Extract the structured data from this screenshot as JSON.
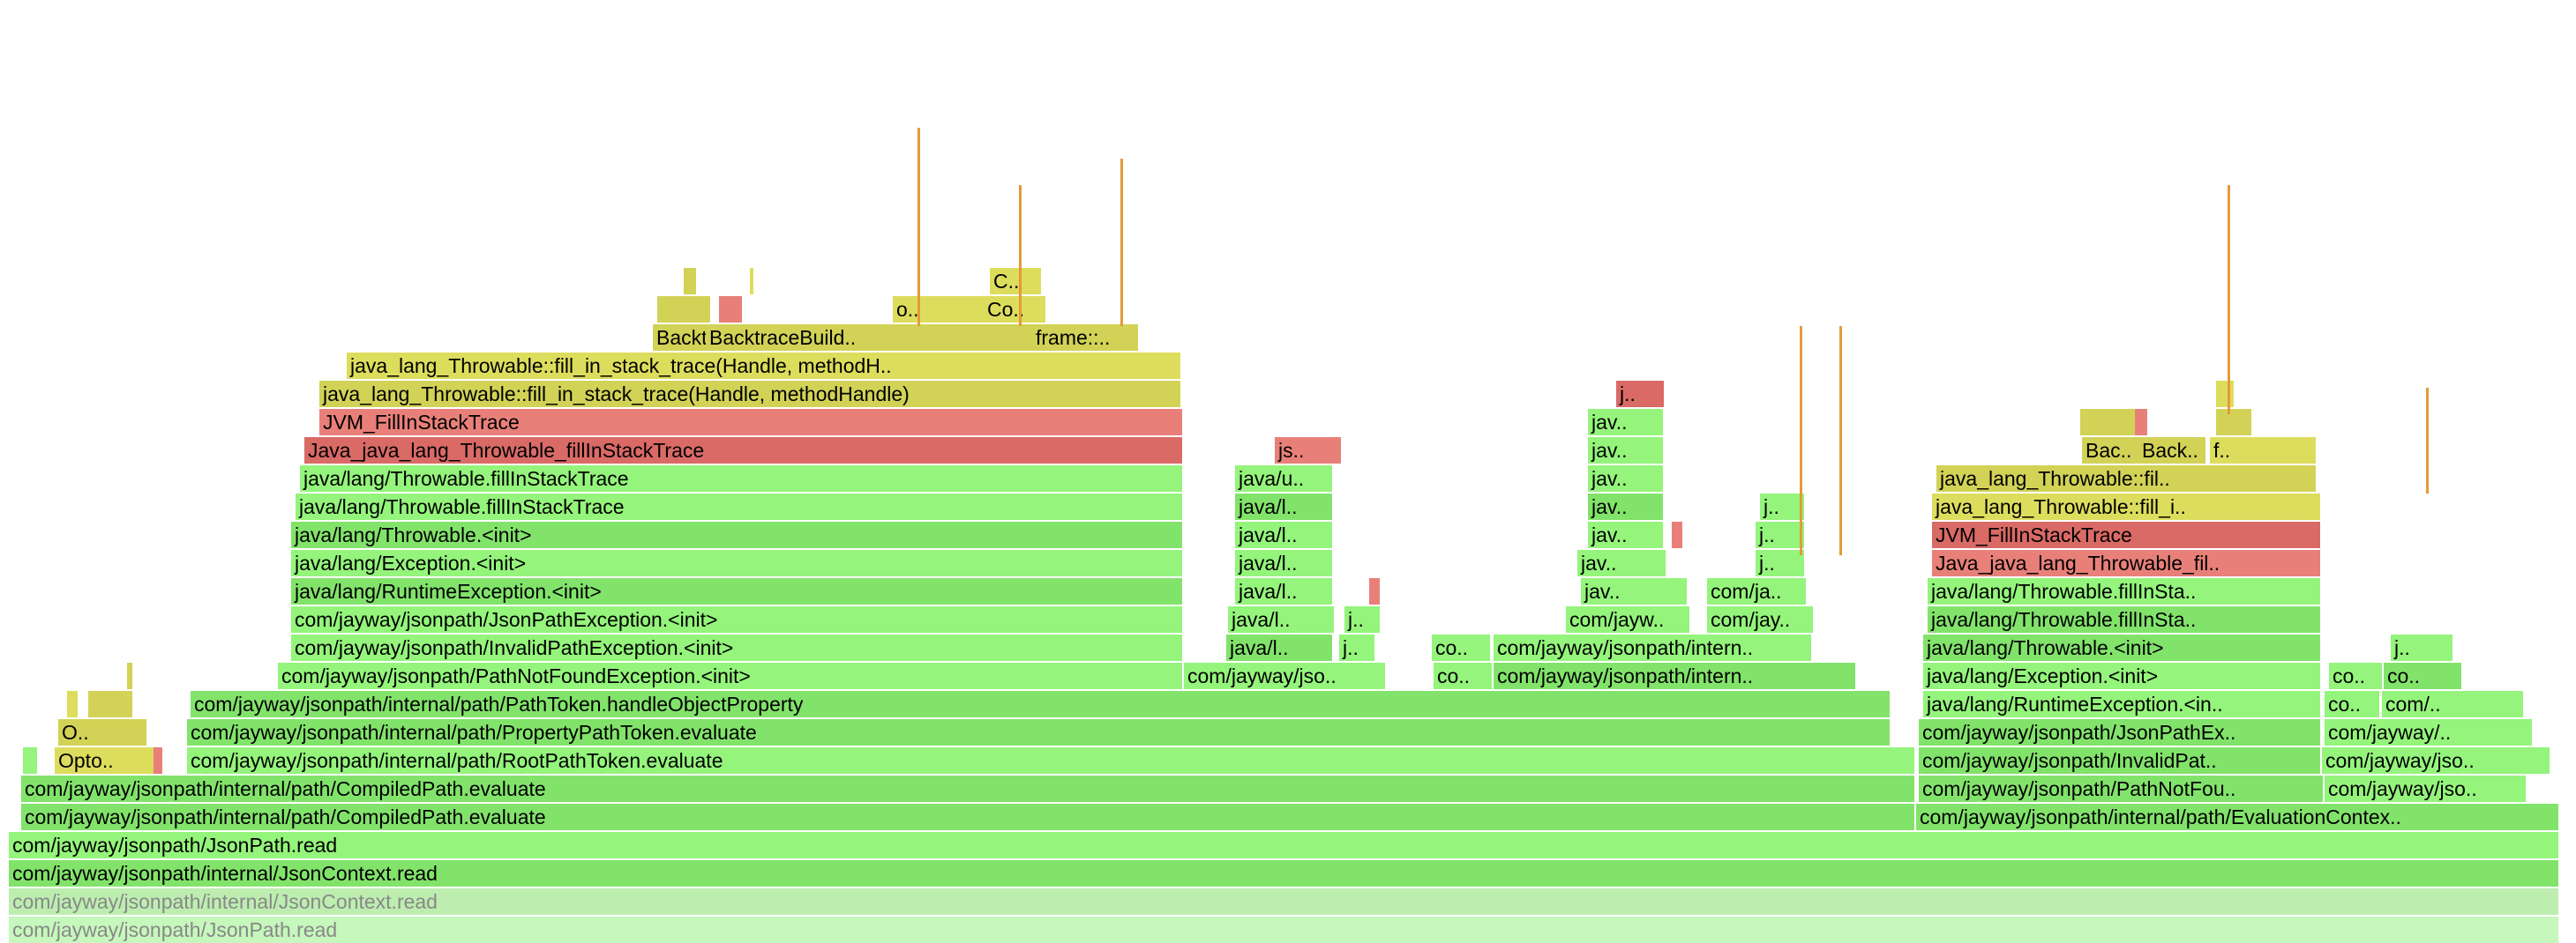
{
  "frames": {
    "l0_a": "com/jayway/jsonpath/JsonPath.read",
    "l1_a": "com/jayway/jsonpath/internal/JsonContext.read",
    "l2_a": "com/jayway/jsonpath/internal/JsonContext.read",
    "l3_a": "com/jayway/jsonpath/JsonPath.read",
    "l4_a": "com/jayway/jsonpath/internal/path/CompiledPath.evaluate",
    "l4_b": "com/jayway/jsonpath/internal/path/EvaluationContex..",
    "l5_a": "com/jayway/jsonpath/internal/path/CompiledPath.evaluate",
    "l5_b": "com/jayway/jsonpath/PathNotFou..",
    "l5_c": "com/jayway/jso..",
    "l6_a": "Opto..",
    "l6_b": "com/jayway/jsonpath/internal/path/RootPathToken.evaluate",
    "l6_c": "com/jayway/jsonpath/InvalidPat..",
    "l6_d": "com/jayway/jso..",
    "l7_a": "O..",
    "l7_b": "com/jayway/jsonpath/internal/path/PropertyPathToken.evaluate",
    "l7_c": "com/jayway/jsonpath/JsonPathEx..",
    "l7_d": "com/jayway/..",
    "l8_a": "com/jayway/jsonpath/internal/path/PathToken.handleObjectProperty",
    "l8_b": "java/lang/RuntimeException.<in..",
    "l8_c": "co..",
    "l8_d": "com/..",
    "l9_a": "com/jayway/jsonpath/PathNotFoundException.<init>",
    "l9_b": "com/jayway/jso..",
    "l9_c": "co..",
    "l9_d": "com/jayway/jsonpath/intern..",
    "l9_e": "java/lang/Exception.<init>",
    "l9_f": "co..",
    "l9_g": "co..",
    "l10_a": "com/jayway/jsonpath/InvalidPathException.<init>",
    "l10_b": "java/l..",
    "l10_c": "j..",
    "l10_d": "co..",
    "l10_e": "com/jayway/jsonpath/intern..",
    "l10_f": "java/lang/Throwable.<init>",
    "l10_g": "j..",
    "l11_a": "com/jayway/jsonpath/JsonPathException.<init>",
    "l11_b": "java/l..",
    "l11_c": "j..",
    "l11_d": "com/jayw..",
    "l11_e": "com/jay..",
    "l11_f": "java/lang/Throwable.fillInSta..",
    "l12_a": "java/lang/RuntimeException.<init>",
    "l12_b": "java/l..",
    "l12_c": "jav..",
    "l12_d": "com/ja..",
    "l12_e": "java/lang/Throwable.fillInSta..",
    "l13_a": "java/lang/Exception.<init>",
    "l13_b": "java/l..",
    "l13_c": "jav..",
    "l13_d": "j..",
    "l13_e": "Java_java_lang_Throwable_fil..",
    "l14_a": "java/lang/Throwable.<init>",
    "l14_b": "java/l..",
    "l14_c": "jav..",
    "l14_d": "j..",
    "l14_e": "JVM_FillInStackTrace",
    "l15_a": "java/lang/Throwable.fillInStackTrace",
    "l15_b": "java/l..",
    "l15_c": "jav..",
    "l15_d": "j..",
    "l15_e": "java_lang_Throwable::fill_i..",
    "l16_a": "java/lang/Throwable.fillInStackTrace",
    "l16_b": "java/u..",
    "l16_c": "jav..",
    "l16_d": "java_lang_Throwable::fil..",
    "l17_a": "Java_java_lang_Throwable_fillInStackTrace",
    "l17_b": "js..",
    "l17_c": "jav..",
    "l17_d": "Bac..",
    "l17_e": "Back..",
    "l17_f": "f..",
    "l18_a": "JVM_FillInStackTrace",
    "l18_b": "jav..",
    "l19_a": "java_lang_Throwable::fill_in_stack_trace(Handle, methodHandle)",
    "l19_b": "j..",
    "l20_a": "java_lang_Throwable::fill_in_stack_trace(Handle, methodH..",
    "l21_a": "Backtr..",
    "l21_b": "BacktraceBuild..",
    "l21_c": "frame::..",
    "l22_a": "o..",
    "l22_b": "Co..",
    "l23_a": "C.."
  },
  "colors": {
    "java": "#94f47b",
    "native": "#dddd5d",
    "jvm": "#e88079"
  }
}
